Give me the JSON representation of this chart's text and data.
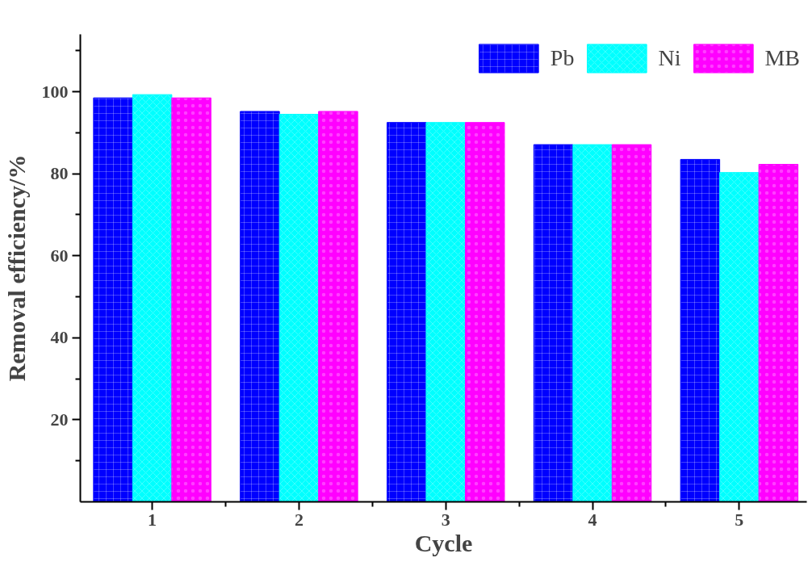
{
  "chart_data": {
    "type": "bar",
    "xlabel": "Cycle",
    "ylabel": "Removal efficiency/%",
    "categories": [
      "1",
      "2",
      "3",
      "4",
      "5"
    ],
    "series": [
      {
        "name": "Pb",
        "color": "#0000ff",
        "values": [
          98.5,
          95.2,
          92.5,
          87.1,
          83.5
        ]
      },
      {
        "name": "Ni",
        "color": "#00ffff",
        "values": [
          99.3,
          94.5,
          92.5,
          87.1,
          80.3
        ]
      },
      {
        "name": "MB",
        "color": "#ff00ff",
        "values": [
          98.5,
          95.2,
          92.5,
          87.1,
          82.3
        ]
      }
    ],
    "ylim": [
      0,
      114
    ],
    "yticks": [
      20,
      40,
      60,
      80,
      100
    ],
    "grid": false,
    "legend": "top right"
  }
}
